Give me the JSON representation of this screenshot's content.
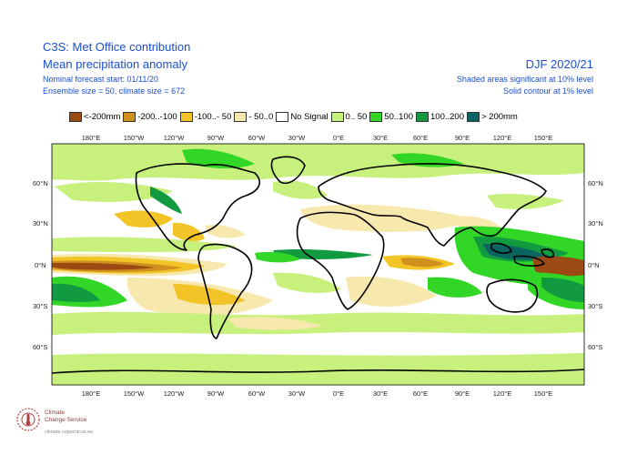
{
  "header": {
    "title": "C3S: Met Office contribution",
    "subtitle": "Mean precipitation anomaly",
    "line3": "Nominal forecast start: 01/11/20",
    "line4": "Ensemble size = 50, climate size = 672",
    "season": "DJF 2020/21",
    "note1": "Shaded areas significant at 10% level",
    "note2": "Solid contour at 1% level"
  },
  "legend": [
    {
      "label": "<-200mm",
      "color": "#9c4a14"
    },
    {
      "label": "-200..-100",
      "color": "#d0901e"
    },
    {
      "label": "-100..- 50",
      "color": "#f2c427"
    },
    {
      "label": "- 50..0",
      "color": "#f7e8ae"
    },
    {
      "label": "No Signal",
      "color": "#ffffff"
    },
    {
      "label": "0.. 50",
      "color": "#c7f07c"
    },
    {
      "label": "50..100",
      "color": "#32d626"
    },
    {
      "label": "100..200",
      "color": "#119a3f"
    },
    {
      "label": "> 200mm",
      "color": "#0a6462"
    }
  ],
  "axes": {
    "lon_labels": [
      "180°E",
      "150°W",
      "120°W",
      "90°W",
      "60°W",
      "30°W",
      "0°E",
      "30°E",
      "60°E",
      "90°E",
      "120°E",
      "150°E"
    ],
    "lat_left": [
      "60°N",
      "30°N",
      "0°N",
      "30°S",
      "60°S"
    ],
    "lat_right": [
      "60°N",
      "30°N",
      "0°N",
      "30°S",
      "60°S"
    ]
  },
  "logo": {
    "line1": "Climate",
    "line2": "Change Service",
    "url": "climate.copernicus.eu",
    "icon": "copernicus-c3s-logo"
  }
}
